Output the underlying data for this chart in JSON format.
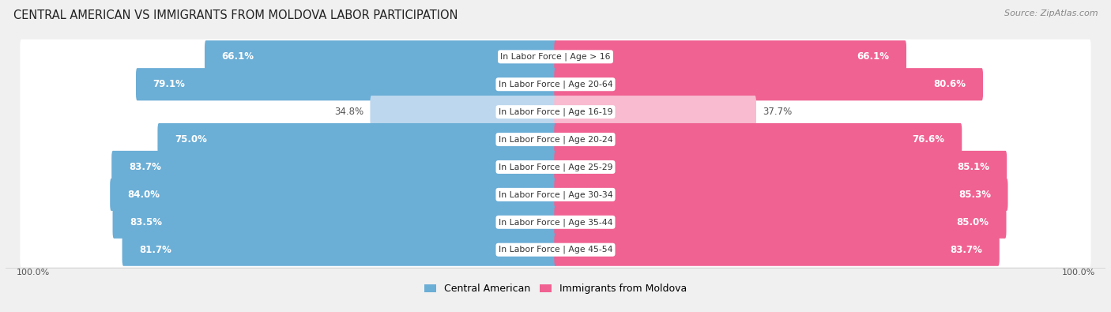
{
  "title": "CENTRAL AMERICAN VS IMMIGRANTS FROM MOLDOVA LABOR PARTICIPATION",
  "source": "Source: ZipAtlas.com",
  "categories": [
    "In Labor Force | Age > 16",
    "In Labor Force | Age 20-64",
    "In Labor Force | Age 16-19",
    "In Labor Force | Age 20-24",
    "In Labor Force | Age 25-29",
    "In Labor Force | Age 30-34",
    "In Labor Force | Age 35-44",
    "In Labor Force | Age 45-54"
  ],
  "central_american": [
    66.1,
    79.1,
    34.8,
    75.0,
    83.7,
    84.0,
    83.5,
    81.7
  ],
  "moldova": [
    66.1,
    80.6,
    37.7,
    76.6,
    85.1,
    85.3,
    85.0,
    83.7
  ],
  "max_val": 100.0,
  "blue_color": "#6BAED6",
  "blue_color_light": "#BDD7EE",
  "pink_color": "#F06292",
  "pink_color_light": "#F8BBD0",
  "bg_color": "#F0F0F0",
  "row_bg_color": "#E8E8E8",
  "label_fontsize": 8.5,
  "cat_fontsize": 7.8,
  "title_fontsize": 10.5,
  "legend_fontsize": 9,
  "bottom_label": "100.0%"
}
